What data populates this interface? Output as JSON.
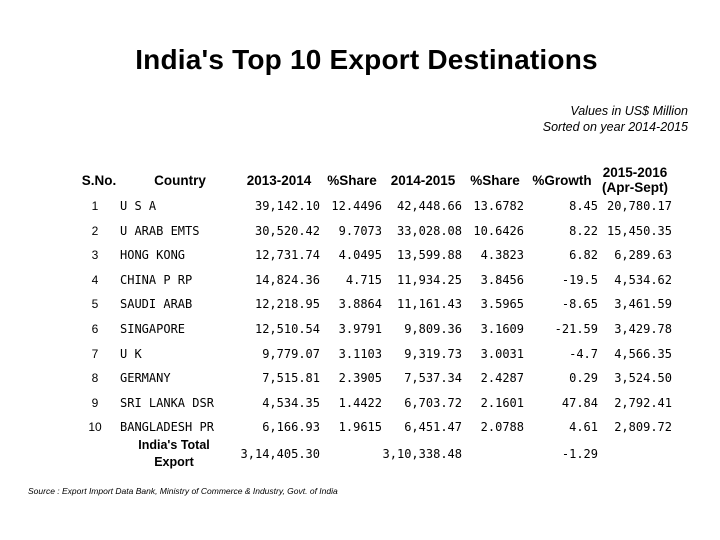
{
  "title": "India's Top 10 Export Destinations",
  "note_line1": "Values in US$ Million",
  "note_line2": "Sorted on year 2014-2015",
  "headers": {
    "sno": "S.No.",
    "country": "Country",
    "y2013": "2013-2014",
    "share1": "%Share",
    "y2014": "2014-2015",
    "share2": "%Share",
    "growth": "%Growth",
    "y2015_line1": "2015-2016",
    "y2015_line2": "(Apr-Sept)"
  },
  "rows": [
    {
      "sno": "1",
      "country": "U S A",
      "v2013": "39,142.10",
      "s1": "12.4496",
      "v2014": "42,448.66",
      "s2": "13.6782",
      "growth": "8.45",
      "v2015": "20,780.17"
    },
    {
      "sno": "2",
      "country": "U ARAB EMTS",
      "v2013": "30,520.42",
      "s1": "9.7073",
      "v2014": "33,028.08",
      "s2": "10.6426",
      "growth": "8.22",
      "v2015": "15,450.35"
    },
    {
      "sno": "3",
      "country": "HONG KONG",
      "v2013": "12,731.74",
      "s1": "4.0495",
      "v2014": "13,599.88",
      "s2": "4.3823",
      "growth": "6.82",
      "v2015": "6,289.63"
    },
    {
      "sno": "4",
      "country": "CHINA P RP",
      "v2013": "14,824.36",
      "s1": "4.715",
      "v2014": "11,934.25",
      "s2": "3.8456",
      "growth": "-19.5",
      "v2015": "4,534.62"
    },
    {
      "sno": "5",
      "country": "SAUDI ARAB",
      "v2013": "12,218.95",
      "s1": "3.8864",
      "v2014": "11,161.43",
      "s2": "3.5965",
      "growth": "-8.65",
      "v2015": "3,461.59"
    },
    {
      "sno": "6",
      "country": "SINGAPORE",
      "v2013": "12,510.54",
      "s1": "3.9791",
      "v2014": "9,809.36",
      "s2": "3.1609",
      "growth": "-21.59",
      "v2015": "3,429.78"
    },
    {
      "sno": "7",
      "country": "U K",
      "v2013": "9,779.07",
      "s1": "3.1103",
      "v2014": "9,319.73",
      "s2": "3.0031",
      "growth": "-4.7",
      "v2015": "4,566.35"
    },
    {
      "sno": "8",
      "country": "GERMANY",
      "v2013": "7,515.81",
      "s1": "2.3905",
      "v2014": "7,537.34",
      "s2": "2.4287",
      "growth": "0.29",
      "v2015": "3,524.50"
    },
    {
      "sno": "9",
      "country": "SRI LANKA DSR",
      "v2013": "4,534.35",
      "s1": "1.4422",
      "v2014": "6,703.72",
      "s2": "2.1601",
      "growth": "47.84",
      "v2015": "2,792.41"
    },
    {
      "sno": "10",
      "country": "BANGLADESH PR",
      "v2013": "6,166.93",
      "s1": "1.9615",
      "v2014": "6,451.47",
      "s2": "2.0788",
      "growth": "4.61",
      "v2015": "2,809.72"
    }
  ],
  "total": {
    "label_line1": "India's Total",
    "label_line2": "Export",
    "v2013": "3,14,405.30",
    "v2014": "3,10,338.48",
    "growth": "-1.29"
  },
  "source": "Source : Export Import Data Bank, Ministry of Commerce & Industry, Govt. of India"
}
